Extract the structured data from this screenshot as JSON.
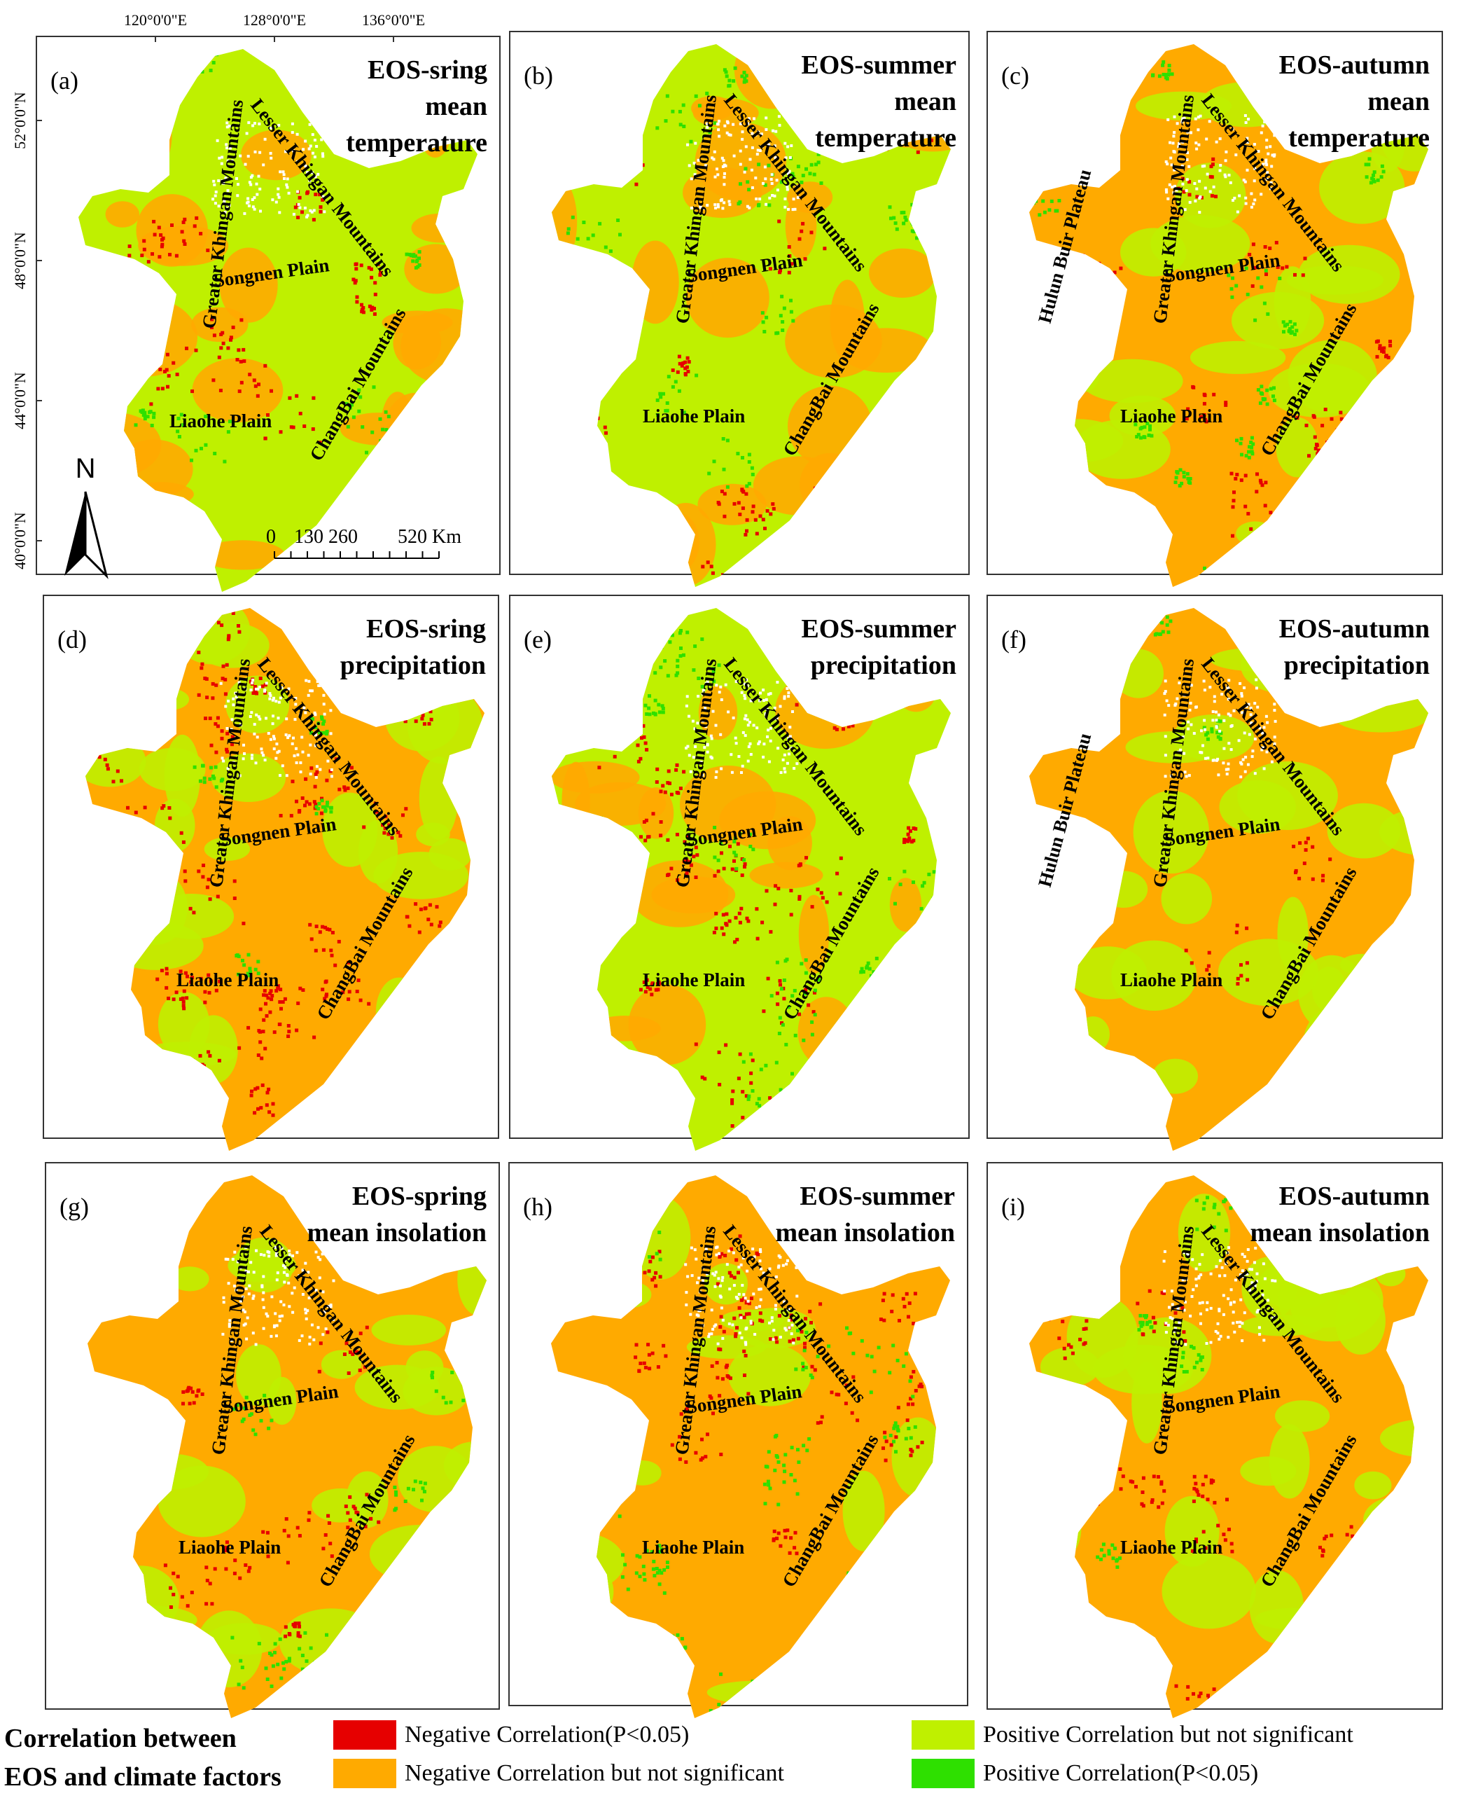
{
  "colors": {
    "negative_significant": "#e60000",
    "negative_not_significant": "#ffaa00",
    "positive_not_significant": "#bff000",
    "positive_significant": "#2ee000",
    "no_data": "#ffffff"
  },
  "axes": {
    "longitude_labels": [
      "120°0'0\"E",
      "128°0'0\"E",
      "136°0'0\"E"
    ],
    "latitude_labels": [
      "52°0'0\"N",
      "48°0'0\"N",
      "44°0'0\"N",
      "40°0'0\"N"
    ],
    "north_label": "N",
    "scale_labels": [
      "0",
      "130 260",
      "520 Km"
    ]
  },
  "region_labels": {
    "greater_khingan": "Greater Khingan Mountains",
    "lesser_khingan": "Lesser Khingan Mountains",
    "songnen": "Songnen Plain",
    "liaohe": "Liaohe Plain",
    "changbai": "ChangBai Mountains",
    "hulun_buir": "Hulun Buir Plateau"
  },
  "panels": [
    {
      "letter": "(a)",
      "title": [
        "EOS-sring",
        "mean",
        "temperature"
      ],
      "weights": {
        "neg_sig": 0.07,
        "neg": 0.38,
        "pos": 0.45,
        "pos_sig": 0.03
      },
      "show_hulun": false
    },
    {
      "letter": "(b)",
      "title": [
        "EOS-summer",
        "mean",
        "temperature"
      ],
      "weights": {
        "neg_sig": 0.07,
        "neg": 0.38,
        "pos": 0.47,
        "pos_sig": 0.06
      },
      "show_hulun": false
    },
    {
      "letter": "(c)",
      "title": [
        "EOS-autumn",
        "mean",
        "temperature"
      ],
      "weights": {
        "neg_sig": 0.05,
        "neg": 0.45,
        "pos": 0.42,
        "pos_sig": 0.06
      },
      "show_hulun": true
    },
    {
      "letter": "(d)",
      "title": [
        "EOS-sring",
        "precipitation"
      ],
      "weights": {
        "neg_sig": 0.14,
        "neg": 0.42,
        "pos": 0.38,
        "pos_sig": 0.02
      },
      "show_hulun": false
    },
    {
      "letter": "(e)",
      "title": [
        "EOS-summer",
        "precipitation"
      ],
      "weights": {
        "neg_sig": 0.1,
        "neg": 0.32,
        "pos": 0.5,
        "pos_sig": 0.06
      },
      "show_hulun": false
    },
    {
      "letter": "(f)",
      "title": [
        "EOS-autumn",
        "precipitation"
      ],
      "weights": {
        "neg_sig": 0.02,
        "neg": 0.5,
        "pos": 0.44,
        "pos_sig": 0.02
      },
      "show_hulun": true
    },
    {
      "letter": "(g)",
      "title": [
        "EOS-spring",
        "mean insolation"
      ],
      "weights": {
        "neg_sig": 0.05,
        "neg": 0.5,
        "pos": 0.39,
        "pos_sig": 0.03
      },
      "show_hulun": false
    },
    {
      "letter": "(h)",
      "title": [
        "EOS-summer",
        "mean insolation"
      ],
      "weights": {
        "neg_sig": 0.12,
        "neg": 0.5,
        "pos": 0.28,
        "pos_sig": 0.08
      },
      "show_hulun": false
    },
    {
      "letter": "(i)",
      "title": [
        "EOS-autumn",
        "mean insolation"
      ],
      "weights": {
        "neg_sig": 0.04,
        "neg": 0.5,
        "pos": 0.42,
        "pos_sig": 0.02
      },
      "show_hulun": false
    }
  ],
  "legend": {
    "title_line1": "Correlation between",
    "title_line2": "EOS and climate factors",
    "neg_sig": "Negative Correlation(P<0.05)",
    "neg": "Negative Correlation but not significant",
    "pos": "Positive Correlation but not significant",
    "pos_sig": "Positive Correlation(P<0.05)"
  }
}
